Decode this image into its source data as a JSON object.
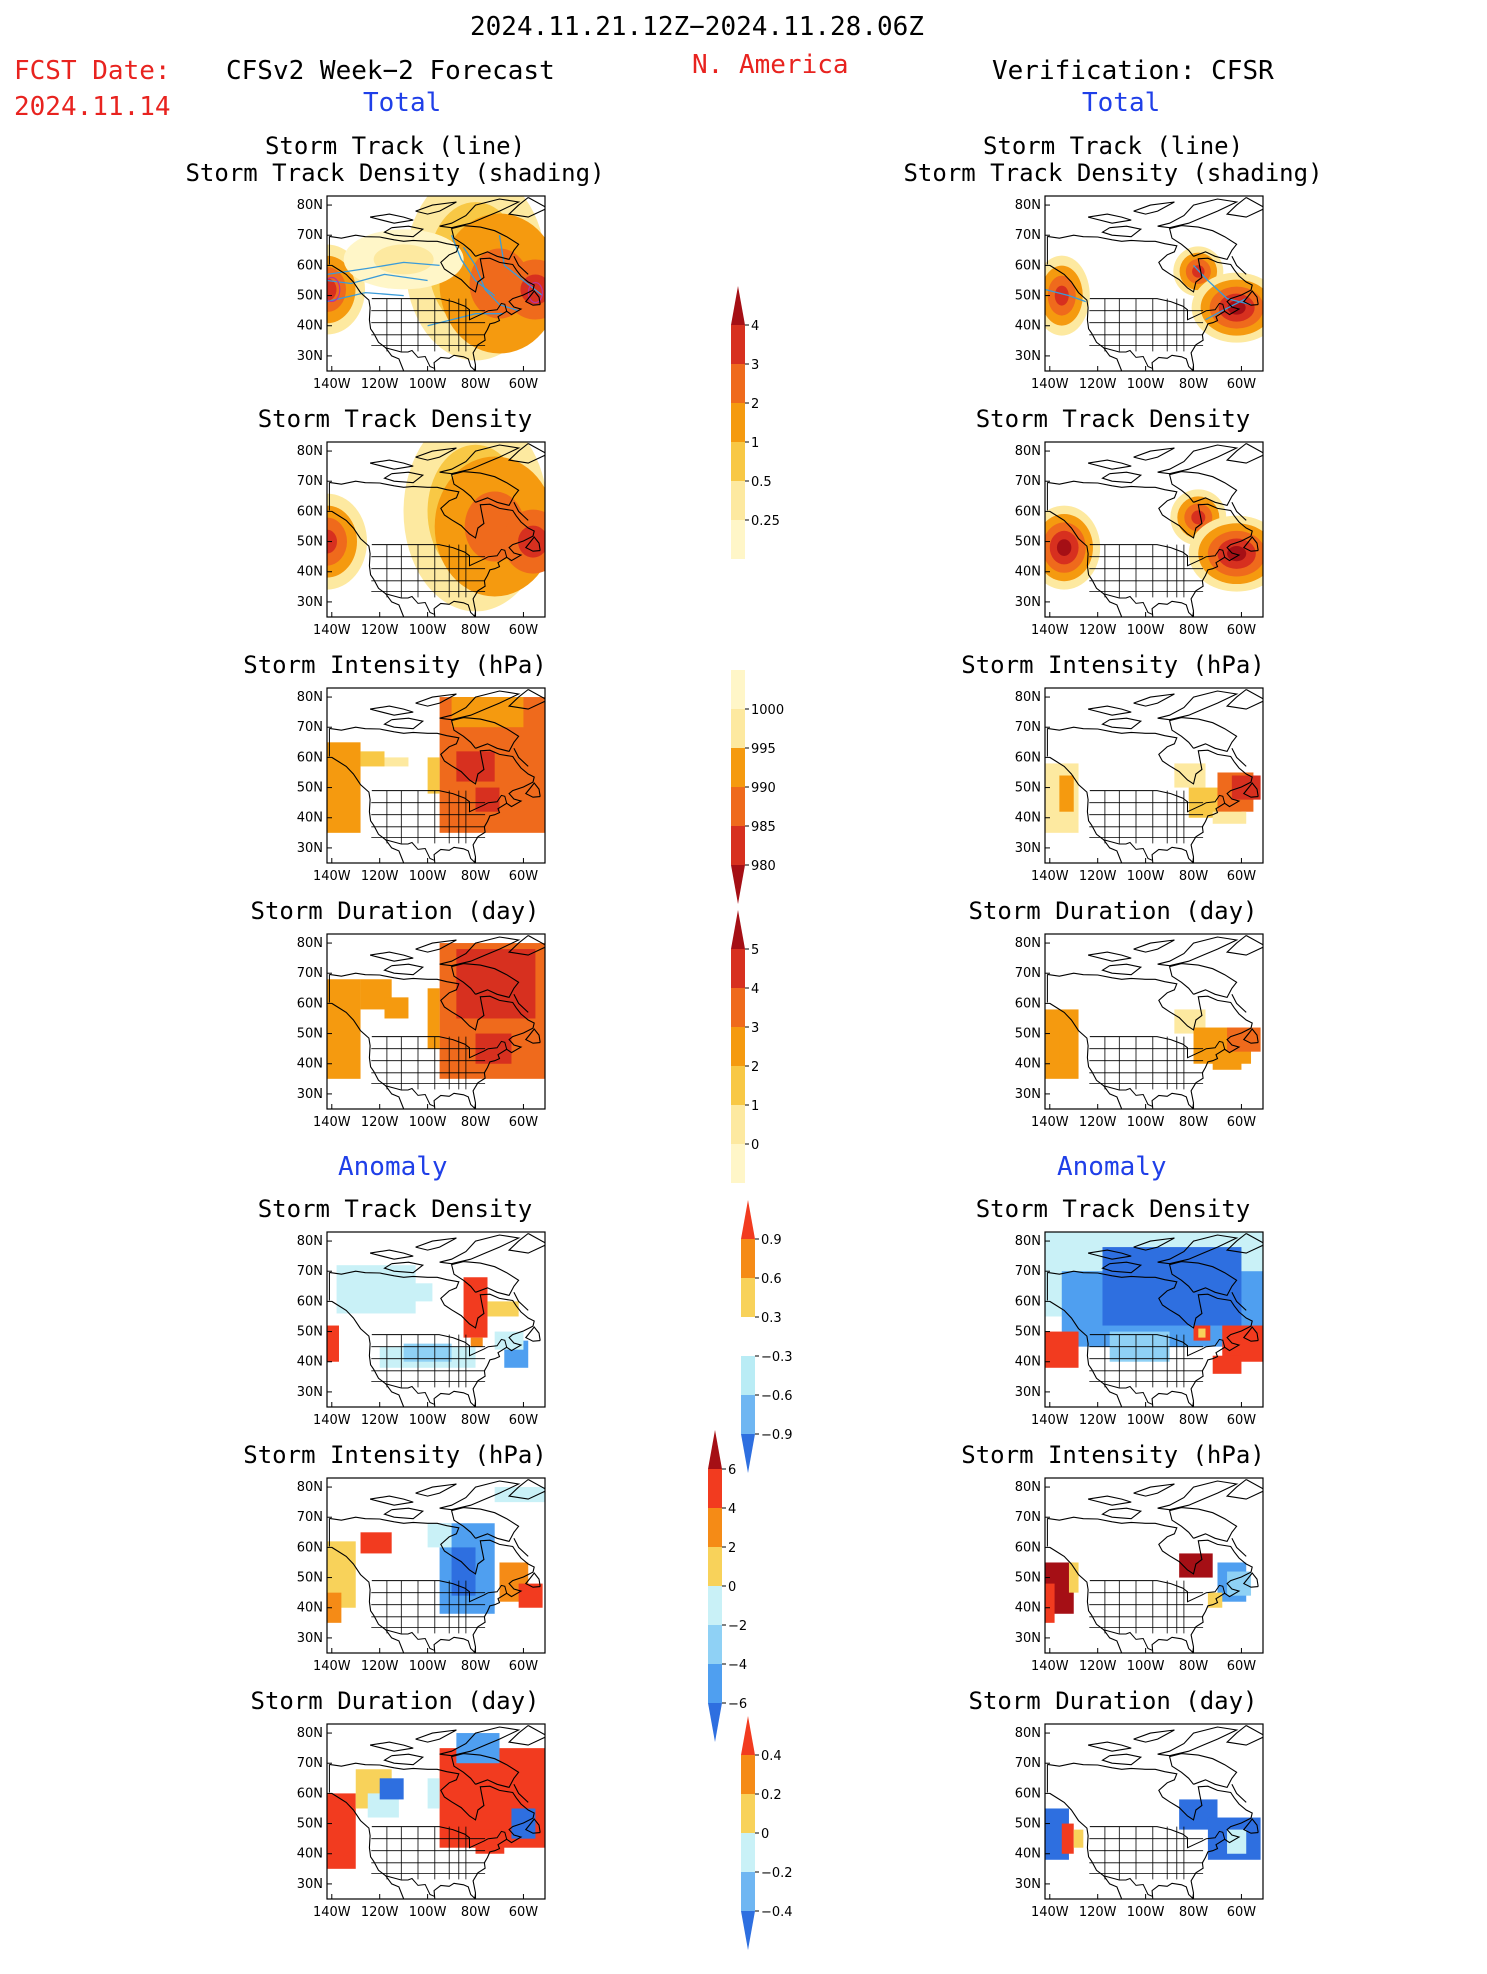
{
  "header": {
    "period": "2024.11.21.12Z−2024.11.28.06Z",
    "fcst_date_label": "FCST Date:",
    "fcst_date_value": "2024.11.14",
    "forecast_title": "CFSv2 Week−2 Forecast",
    "region": "N. America",
    "verification_title": "Verification: CFSR",
    "total_left": "Total",
    "total_right": "Total",
    "anomaly_left": "Anomaly",
    "anomaly_right": "Anomaly"
  },
  "panel_titles": {
    "track_line": "Storm Track (line)",
    "track_shading": "Storm Track Density (shading)",
    "density": "Storm Track Density",
    "intensity": "Storm Intensity (hPa)",
    "duration": "Storm Duration (day)"
  },
  "axes": {
    "lat_labels": [
      "80N",
      "70N",
      "60N",
      "50N",
      "40N",
      "30N"
    ],
    "lon_labels": [
      "140W",
      "120W",
      "100W",
      "80W",
      "60W"
    ]
  },
  "colorbars": {
    "density_total": {
      "labels": [
        "4",
        "3",
        "2",
        "1",
        "0.5",
        "0.25"
      ],
      "colors": [
        "#a50f15",
        "#d7301f",
        "#ef6a1c",
        "#f59a0f",
        "#f8c845",
        "#fde9a0",
        "#fff6c8"
      ]
    },
    "intensity_total": {
      "labels": [
        "1000",
        "995",
        "990",
        "985",
        "980"
      ],
      "colors": [
        "#fff6c8",
        "#fde9a0",
        "#f59a0f",
        "#ef6a1c",
        "#d7301f",
        "#a50f15"
      ]
    },
    "duration_total": {
      "labels": [
        "5",
        "4",
        "3",
        "2",
        "1",
        "0"
      ],
      "colors": [
        "#a50f15",
        "#d7301f",
        "#ef6a1c",
        "#f59a0f",
        "#f8c845",
        "#fde9a0",
        "#fff6c8"
      ]
    },
    "density_anom": {
      "labels": [
        "0.9",
        "0.6",
        "0.3",
        "−0.3",
        "−0.6",
        "−0.9"
      ],
      "colors": [
        "#f23b1f",
        "#f58b16",
        "#f8d25a",
        "#ffffff",
        "#b9ecf5",
        "#6fb6f2",
        "#2e6fe0"
      ]
    },
    "intensity_anom": {
      "labels": [
        "6",
        "4",
        "2",
        "0",
        "−2",
        "−4",
        "−6"
      ],
      "colors": [
        "#a50f15",
        "#f23b1f",
        "#f58b16",
        "#f8d25a",
        "#c9f1f7",
        "#8fd1f5",
        "#4f9ff0",
        "#2e6fe0"
      ]
    },
    "duration_anom": {
      "labels": [
        "0.4",
        "0.2",
        "0",
        "−0.2",
        "−0.4"
      ],
      "colors": [
        "#f23b1f",
        "#f58b16",
        "#f8d25a",
        "#c9f1f7",
        "#6fb6f2",
        "#2e6fe0"
      ]
    }
  }
}
